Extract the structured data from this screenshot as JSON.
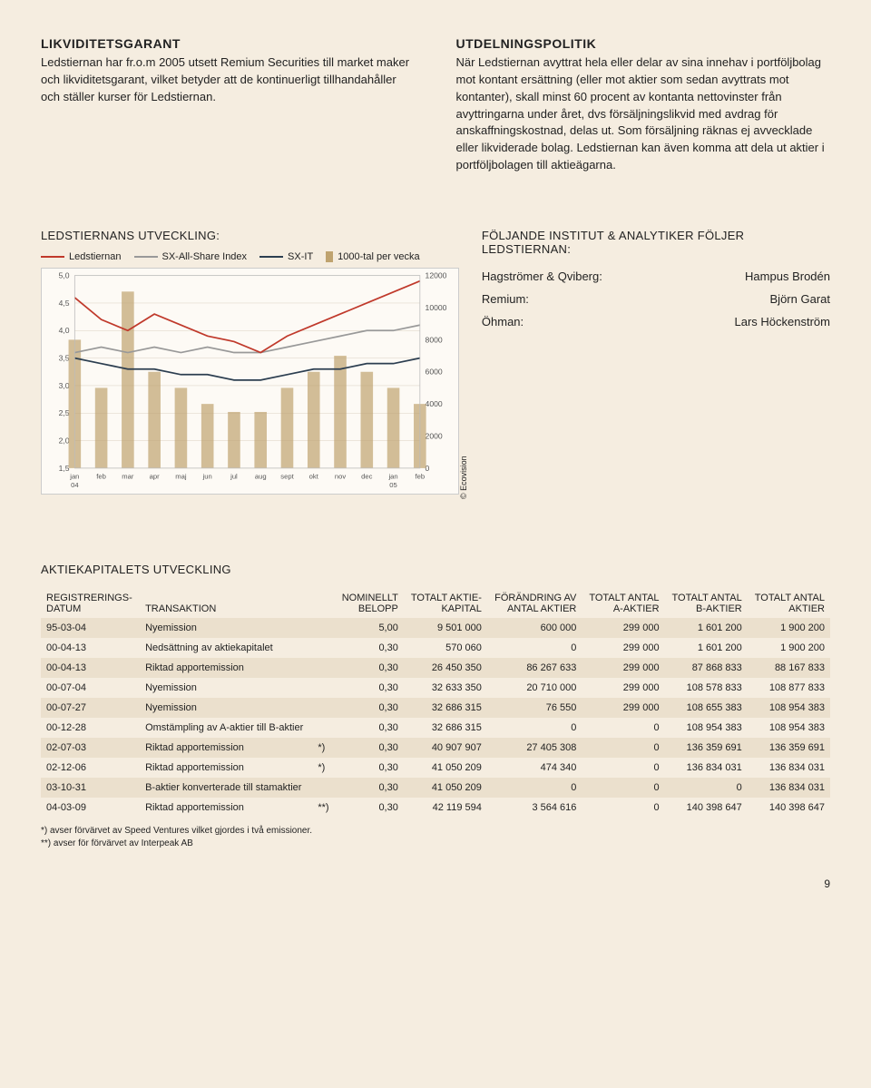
{
  "section_left": {
    "title": "LIKVIDITETSGARANT",
    "body": "Ledstiernan har fr.o.m 2005 utsett Remium Securities till market maker och likviditetsgarant, vilket betyder att de kontinuerligt tillhandahåller och ställer kurser för Ledstiernan."
  },
  "section_right": {
    "title": "UTDELNINGSPOLITIK",
    "body": "När Ledstiernan avyttrat hela eller delar av sina innehav i portföljbolag mot kontant ersättning (eller mot aktier som sedan avyttrats mot kontanter), skall minst 60 procent av kontanta nettovinster från avyttringarna under året, dvs försäljningslikvid med avdrag för anskaffningskostnad, delas ut. Som försäljning räknas ej avvecklade eller likviderade bolag. Ledstiernan kan även komma att dela ut aktier i portföljbolagen till aktieägarna."
  },
  "chart_panel": {
    "title": "LEDSTIERNANS UTVECKLING:",
    "legend": {
      "s1": "Ledstiernan",
      "s2": "SX-All-Share Index",
      "s3": "SX-IT",
      "s4": "1000-tal per vecka"
    },
    "credit": "© Ecovision",
    "chart": {
      "type": "combo-line-bar",
      "background_color": "#fdfaf5",
      "grid_color": "#d8cfbf",
      "line_colors": {
        "ledstiernan": "#c0392b",
        "sx_all": "#999999",
        "sx_it": "#2c3e50"
      },
      "bar_color": "#bfa36f",
      "y_left": {
        "min": 1.5,
        "max": 5.0,
        "ticks": [
          1.5,
          2.0,
          2.5,
          3.0,
          3.5,
          4.0,
          4.5,
          5.0
        ]
      },
      "y_right": {
        "min": 0,
        "max": 12000,
        "ticks": [
          0,
          2000,
          4000,
          6000,
          8000,
          10000,
          12000
        ]
      },
      "x_labels": [
        "jan 04",
        "feb",
        "mar",
        "apr",
        "maj",
        "jun",
        "jul",
        "aug",
        "sept",
        "okt",
        "nov",
        "dec",
        "jan 05",
        "feb"
      ],
      "series": {
        "ledstiernan": [
          4.6,
          4.2,
          4.0,
          4.3,
          4.1,
          3.9,
          3.8,
          3.6,
          3.9,
          4.1,
          4.3,
          4.5,
          4.7,
          4.9
        ],
        "sx_all": [
          3.6,
          3.7,
          3.6,
          3.7,
          3.6,
          3.7,
          3.6,
          3.6,
          3.7,
          3.8,
          3.9,
          4.0,
          4.0,
          4.1
        ],
        "sx_it": [
          3.5,
          3.4,
          3.3,
          3.3,
          3.2,
          3.2,
          3.1,
          3.1,
          3.2,
          3.3,
          3.3,
          3.4,
          3.4,
          3.5
        ]
      },
      "volume": [
        8000,
        5000,
        11000,
        6000,
        5000,
        4000,
        3500,
        3500,
        5000,
        6000,
        7000,
        6000,
        5000,
        4000
      ]
    }
  },
  "analyst_panel": {
    "title": "FÖLJANDE INSTITUT & ANALYTIKER FÖLJER LEDSTIERNAN:",
    "rows": [
      {
        "firm": "Hagströmer & Qviberg:",
        "name": "Hampus Brodén"
      },
      {
        "firm": "Remium:",
        "name": "Björn Garat"
      },
      {
        "firm": "Öhman:",
        "name": "Lars Höckenström"
      }
    ]
  },
  "capital_table": {
    "title": "AKTIEKAPITALETS UTVECKLING",
    "headers": {
      "c1a": "REGISTRERINGS-",
      "c1b": "DATUM",
      "c2": "TRANSAKTION",
      "c3a": "NOMINELLT",
      "c3b": "BELOPP",
      "c4a": "TOTALT AKTIE-",
      "c4b": "KAPITAL",
      "c5a": "FÖRÄNDRING AV",
      "c5b": "ANTAL AKTIER",
      "c6a": "TOTALT ANTAL",
      "c6b": "A-AKTIER",
      "c7a": "TOTALT ANTAL",
      "c7b": "B-AKTIER",
      "c8a": "TOTALT ANTAL",
      "c8b": "AKTIER"
    },
    "rows": [
      [
        "95-03-04",
        "Nyemission",
        "",
        "5,00",
        "9 501 000",
        "600 000",
        "299 000",
        "1 601 200",
        "1 900 200"
      ],
      [
        "00-04-13",
        "Nedsättning av aktiekapitalet",
        "",
        "0,30",
        "570 060",
        "0",
        "299 000",
        "1 601 200",
        "1 900 200"
      ],
      [
        "00-04-13",
        "Riktad apportemission",
        "",
        "0,30",
        "26 450 350",
        "86 267 633",
        "299 000",
        "87 868 833",
        "88 167 833"
      ],
      [
        "00-07-04",
        "Nyemission",
        "",
        "0,30",
        "32 633 350",
        "20 710 000",
        "299 000",
        "108 578 833",
        "108 877 833"
      ],
      [
        "00-07-27",
        "Nyemission",
        "",
        "0,30",
        "32 686 315",
        "76 550",
        "299 000",
        "108 655 383",
        "108 954 383"
      ],
      [
        "00-12-28",
        "Omstämpling av A-aktier till B-aktier",
        "",
        "0,30",
        "32 686 315",
        "0",
        "0",
        "108 954 383",
        "108 954 383"
      ],
      [
        "02-07-03",
        "Riktad apportemission",
        "*)",
        "0,30",
        "40 907 907",
        "27 405 308",
        "0",
        "136 359 691",
        "136 359 691"
      ],
      [
        "02-12-06",
        "Riktad apportemission",
        "*)",
        "0,30",
        "41 050 209",
        "474 340",
        "0",
        "136 834 031",
        "136 834 031"
      ],
      [
        "03-10-31",
        "B-aktier konverterade till stamaktier",
        "",
        "0,30",
        "41 050 209",
        "0",
        "0",
        "0",
        "136 834 031"
      ],
      [
        "04-03-09",
        "Riktad apportemission",
        "**)",
        "0,30",
        "42 119 594",
        "3 564 616",
        "0",
        "140 398 647",
        "140 398 647"
      ]
    ],
    "footnote1": "*) avser förvärvet av Speed Ventures vilket gjordes i två emissioner.",
    "footnote2": "**) avser för förvärvet av Interpeak AB"
  },
  "page_number": "9"
}
